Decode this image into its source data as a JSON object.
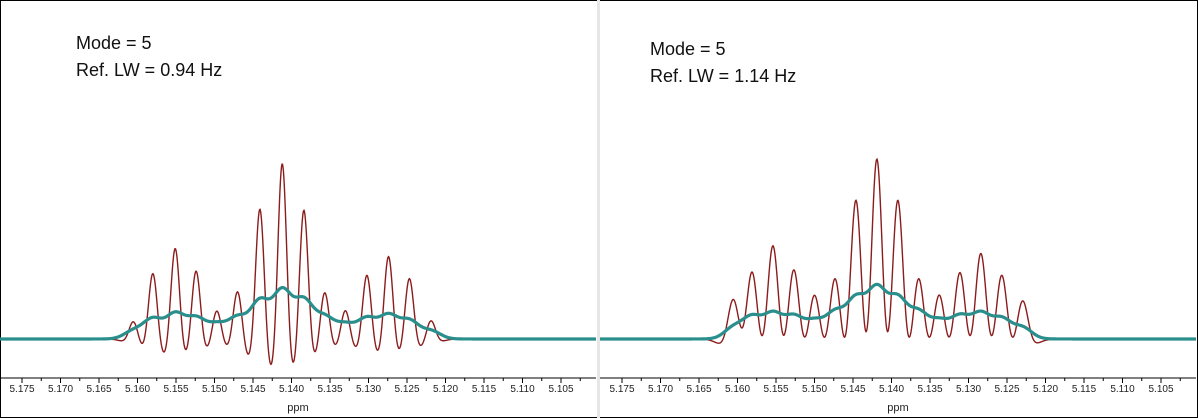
{
  "chart_data": [
    {
      "type": "line",
      "xlabel": "ppm",
      "ylabel": "",
      "x_reversed": true,
      "xlim": [
        5.105,
        5.178
      ],
      "x_ticks": [
        "5.175",
        "5.170",
        "5.165",
        "5.160",
        "5.155",
        "5.150",
        "5.145",
        "5.140",
        "5.135",
        "5.130",
        "5.125",
        "5.120",
        "5.115",
        "5.110",
        "5.105"
      ],
      "annotations": [
        "Mode = 5",
        "Ref. LW = 0.94 Hz"
      ],
      "colors": {
        "reference": "#8b1c1c",
        "fitted": "#2a8f8c"
      },
      "series": [
        {
          "line_width_hz": 0.94,
          "peaks": [
            {
              "ppm": 5.1605,
              "height": 0.12
            },
            {
              "ppm": 5.158,
              "height": 0.42
            },
            {
              "ppm": 5.1551,
              "height": 0.58
            },
            {
              "ppm": 5.1524,
              "height": 0.44
            },
            {
              "ppm": 5.1497,
              "height": 0.19
            },
            {
              "ppm": 5.147,
              "height": 0.31
            },
            {
              "ppm": 5.1441,
              "height": 0.83
            },
            {
              "ppm": 5.1412,
              "height": 1.12
            },
            {
              "ppm": 5.1384,
              "height": 0.83
            },
            {
              "ppm": 5.1357,
              "height": 0.31
            },
            {
              "ppm": 5.133,
              "height": 0.19
            },
            {
              "ppm": 5.1302,
              "height": 0.41
            },
            {
              "ppm": 5.1274,
              "height": 0.53
            },
            {
              "ppm": 5.1247,
              "height": 0.39
            },
            {
              "ppm": 5.1219,
              "height": 0.12
            }
          ]
        },
        {
          "peaks": [
            {
              "ppm": 5.1605,
              "height": 0.05
            },
            {
              "ppm": 5.158,
              "height": 0.12
            },
            {
              "ppm": 5.1551,
              "height": 0.15
            },
            {
              "ppm": 5.1524,
              "height": 0.12
            },
            {
              "ppm": 5.1497,
              "height": 0.08
            },
            {
              "ppm": 5.147,
              "height": 0.12
            },
            {
              "ppm": 5.1441,
              "height": 0.22
            },
            {
              "ppm": 5.1412,
              "height": 0.28
            },
            {
              "ppm": 5.1384,
              "height": 0.22
            },
            {
              "ppm": 5.1357,
              "height": 0.12
            },
            {
              "ppm": 5.133,
              "height": 0.08
            },
            {
              "ppm": 5.1302,
              "height": 0.12
            },
            {
              "ppm": 5.1274,
              "height": 0.14
            },
            {
              "ppm": 5.1247,
              "height": 0.11
            },
            {
              "ppm": 5.1219,
              "height": 0.05
            }
          ]
        }
      ]
    },
    {
      "type": "line",
      "xlabel": "ppm",
      "ylabel": "",
      "x_reversed": true,
      "xlim": [
        5.105,
        5.178
      ],
      "x_ticks": [
        "5.175",
        "5.170",
        "5.165",
        "5.160",
        "5.155",
        "5.150",
        "5.145",
        "5.140",
        "5.135",
        "5.130",
        "5.125",
        "5.120",
        "5.115",
        "5.110",
        "5.105"
      ],
      "annotations": [
        "Mode = 5",
        "Ref. LW = 1.14 Hz"
      ],
      "colors": {
        "reference": "#8b1c1c",
        "fitted": "#2a8f8c"
      },
      "series": [
        {
          "line_width_hz": 1.14,
          "peaks": [
            {
              "ppm": 5.1605,
              "height": 0.28
            },
            {
              "ppm": 5.1581,
              "height": 0.47
            },
            {
              "ppm": 5.1554,
              "height": 0.63
            },
            {
              "ppm": 5.1527,
              "height": 0.48
            },
            {
              "ppm": 5.15,
              "height": 0.32
            },
            {
              "ppm": 5.1473,
              "height": 0.44
            },
            {
              "ppm": 5.1446,
              "height": 0.95
            },
            {
              "ppm": 5.1419,
              "height": 1.22
            },
            {
              "ppm": 5.1392,
              "height": 0.95
            },
            {
              "ppm": 5.1365,
              "height": 0.44
            },
            {
              "ppm": 5.1338,
              "height": 0.32
            },
            {
              "ppm": 5.1311,
              "height": 0.46
            },
            {
              "ppm": 5.1284,
              "height": 0.58
            },
            {
              "ppm": 5.1257,
              "height": 0.44
            },
            {
              "ppm": 5.123,
              "height": 0.26
            }
          ]
        },
        {
          "peaks": [
            {
              "ppm": 5.1605,
              "height": 0.07
            },
            {
              "ppm": 5.1581,
              "height": 0.13
            },
            {
              "ppm": 5.1554,
              "height": 0.15
            },
            {
              "ppm": 5.1527,
              "height": 0.13
            },
            {
              "ppm": 5.15,
              "height": 0.1
            },
            {
              "ppm": 5.1473,
              "height": 0.15
            },
            {
              "ppm": 5.1446,
              "height": 0.23
            },
            {
              "ppm": 5.1419,
              "height": 0.29
            },
            {
              "ppm": 5.1392,
              "height": 0.23
            },
            {
              "ppm": 5.1365,
              "height": 0.15
            },
            {
              "ppm": 5.1338,
              "height": 0.1
            },
            {
              "ppm": 5.1311,
              "height": 0.13
            },
            {
              "ppm": 5.1284,
              "height": 0.15
            },
            {
              "ppm": 5.1257,
              "height": 0.12
            },
            {
              "ppm": 5.123,
              "height": 0.07
            }
          ]
        }
      ]
    }
  ]
}
